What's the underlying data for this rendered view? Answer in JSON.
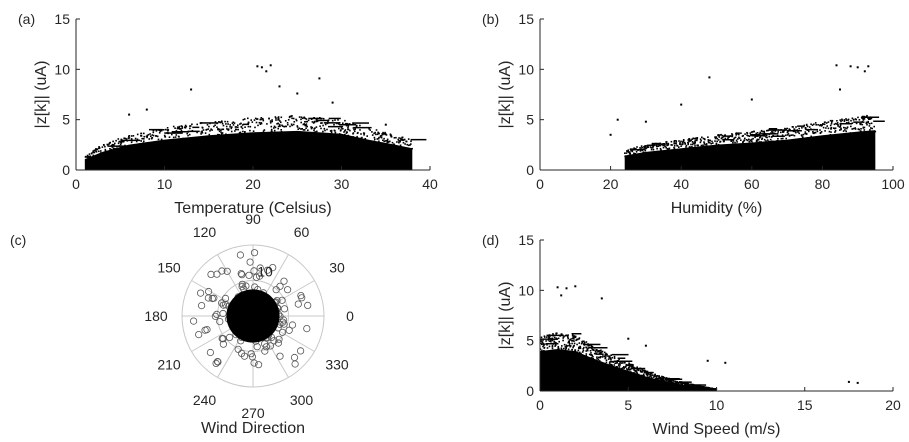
{
  "chart_data": [
    {
      "id": "a",
      "panel_label": "(a)",
      "type": "scatter",
      "xlabel": "Temperature (Celsius)",
      "ylabel": "|z[k]| (uA)",
      "xlim": [
        0,
        40
      ],
      "ylim": [
        0,
        15
      ],
      "xticks": [
        0,
        10,
        20,
        30,
        40
      ],
      "yticks": [
        0,
        5,
        10,
        15
      ],
      "grid": false,
      "marker_color": "#000000",
      "data_envelope": [
        [
          1,
          1.5
        ],
        [
          3,
          2.5
        ],
        [
          6,
          3.5
        ],
        [
          10,
          4.2
        ],
        [
          15,
          4.8
        ],
        [
          20,
          5.2
        ],
        [
          25,
          5.4
        ],
        [
          30,
          5.0
        ],
        [
          33,
          4.2
        ],
        [
          36,
          3.5
        ],
        [
          38,
          3.0
        ]
      ],
      "outliers": [
        [
          20.5,
          10.3
        ],
        [
          21,
          10.2
        ],
        [
          22,
          10.4
        ],
        [
          21.5,
          9.8
        ],
        [
          27.5,
          9.1
        ],
        [
          13,
          8.0
        ],
        [
          23,
          8.3
        ],
        [
          6,
          5.5
        ],
        [
          8,
          6.0
        ],
        [
          25,
          7.6
        ],
        [
          29,
          6.7
        ],
        [
          35,
          4.5
        ]
      ]
    },
    {
      "id": "b",
      "panel_label": "(b)",
      "type": "scatter",
      "xlabel": "Humidity (%)",
      "ylabel": "|z[k]| (uA)",
      "xlim": [
        0,
        100
      ],
      "ylim": [
        0,
        15
      ],
      "xticks": [
        0,
        20,
        40,
        60,
        80,
        100
      ],
      "yticks": [
        0,
        5,
        10,
        15
      ],
      "grid": false,
      "marker_color": "#000000",
      "data_envelope": [
        [
          24,
          2.0
        ],
        [
          30,
          2.5
        ],
        [
          40,
          3.0
        ],
        [
          50,
          3.5
        ],
        [
          60,
          3.8
        ],
        [
          70,
          4.2
        ],
        [
          80,
          4.8
        ],
        [
          90,
          5.3
        ],
        [
          95,
          5.5
        ]
      ],
      "outliers": [
        [
          84,
          10.4
        ],
        [
          88,
          10.3
        ],
        [
          90,
          10.2
        ],
        [
          93,
          10.3
        ],
        [
          92,
          9.8
        ],
        [
          48,
          9.2
        ],
        [
          40,
          6.5
        ],
        [
          60,
          7.0
        ],
        [
          85,
          8.0
        ],
        [
          20,
          3.5
        ],
        [
          22,
          5.0
        ],
        [
          30,
          4.8
        ]
      ]
    },
    {
      "id": "c",
      "panel_label": "(c)",
      "type": "polar_scatter",
      "xlabel": "Wind Direction",
      "angle_ticks": [
        "0",
        "30",
        "60",
        "90",
        "120",
        "150",
        "180",
        "210",
        "240",
        "270",
        "300",
        "330"
      ],
      "r_ticks": [
        "10"
      ],
      "r_max": 20,
      "grid": true,
      "marker_color": "#000000",
      "core_radius": 6,
      "scatter_spread": 10
    },
    {
      "id": "d",
      "panel_label": "(d)",
      "type": "scatter",
      "xlabel": "Wind Speed (m/s)",
      "ylabel": "|z[k]| (uA)",
      "xlim": [
        0,
        20
      ],
      "ylim": [
        0,
        15
      ],
      "xticks": [
        0,
        5,
        10,
        15,
        20
      ],
      "yticks": [
        0,
        5,
        10,
        15
      ],
      "grid": false,
      "marker_color": "#000000",
      "data_envelope": [
        [
          0,
          5.5
        ],
        [
          1,
          5.8
        ],
        [
          2,
          5.5
        ],
        [
          3,
          4.5
        ],
        [
          4,
          3.6
        ],
        [
          5,
          2.8
        ],
        [
          6,
          2.0
        ],
        [
          7,
          1.4
        ],
        [
          8,
          0.9
        ],
        [
          9,
          0.5
        ],
        [
          10,
          0.2
        ]
      ],
      "outliers": [
        [
          1,
          10.3
        ],
        [
          1.5,
          10.2
        ],
        [
          2,
          10.4
        ],
        [
          1.2,
          9.5
        ],
        [
          3.5,
          9.2
        ],
        [
          17.5,
          0.9
        ],
        [
          18,
          0.8
        ],
        [
          10.5,
          2.8
        ],
        [
          9.5,
          3.0
        ],
        [
          6,
          4.5
        ],
        [
          5,
          5.2
        ]
      ]
    }
  ]
}
